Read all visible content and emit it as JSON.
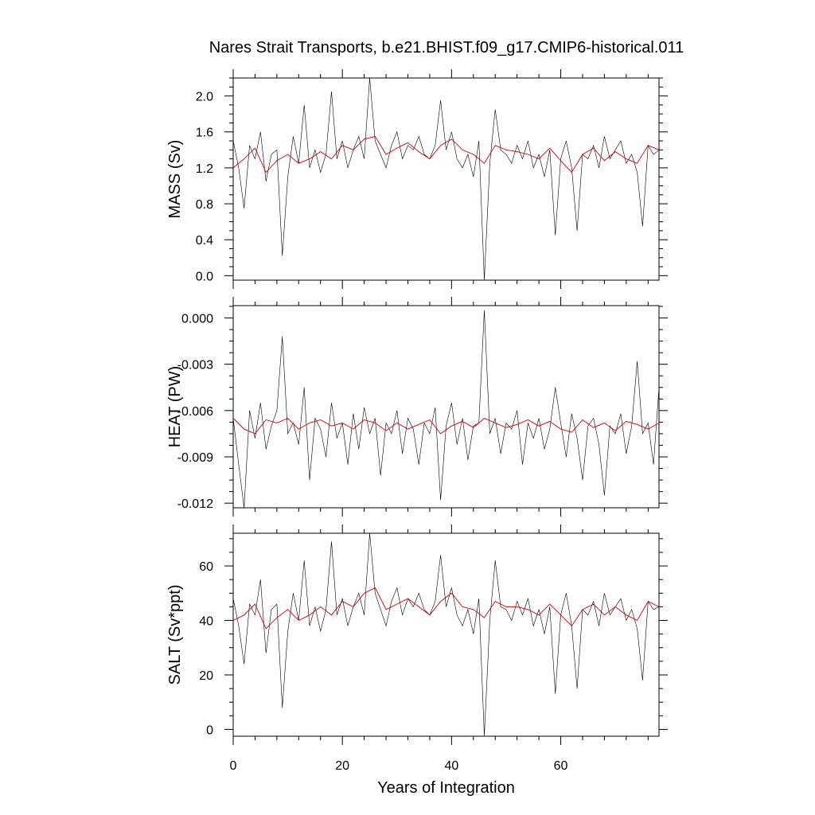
{
  "title": "Nares Strait Transports, b.e21.BHIST.f09_g17.CMIP6-historical.011",
  "colors": {
    "raw": "#000000",
    "smooth": "#d40000"
  },
  "chart_data": [
    {
      "type": "line",
      "ylabel": "MASS (Sv)",
      "xlabel": "",
      "xlim": [
        0,
        78
      ],
      "ylim": [
        -0.05,
        2.2
      ],
      "yticks": [
        0.0,
        0.4,
        0.8,
        1.2,
        1.6,
        2.0
      ],
      "ytick_labels": [
        "0.0",
        "0.4",
        "0.8",
        "1.2",
        "1.6",
        "2.0"
      ],
      "xticks": [
        0,
        20,
        40,
        60
      ],
      "xtick_labels": [
        "",
        "",
        "",
        ""
      ],
      "series": [
        {
          "style": "raw",
          "x": [
            0,
            1,
            2,
            3,
            4,
            5,
            6,
            7,
            8,
            9,
            10,
            11,
            12,
            13,
            14,
            15,
            16,
            17,
            18,
            19,
            20,
            21,
            22,
            23,
            24,
            25,
            26,
            27,
            28,
            29,
            30,
            31,
            32,
            33,
            34,
            35,
            36,
            37,
            38,
            39,
            40,
            41,
            42,
            43,
            44,
            45,
            46,
            47,
            48,
            49,
            50,
            51,
            52,
            53,
            54,
            55,
            56,
            57,
            58,
            59,
            60,
            61,
            62,
            63,
            64,
            65,
            66,
            67,
            68,
            69,
            70,
            71,
            72,
            73,
            74,
            75,
            76,
            77,
            78
          ],
          "values": [
            1.5,
            1.2,
            0.75,
            1.45,
            1.3,
            1.6,
            1.05,
            1.35,
            1.4,
            0.22,
            1.1,
            1.55,
            1.25,
            1.9,
            1.2,
            1.4,
            1.15,
            1.35,
            2.05,
            1.3,
            1.5,
            1.2,
            1.4,
            1.55,
            1.3,
            2.2,
            1.5,
            1.35,
            1.2,
            1.45,
            1.6,
            1.3,
            1.45,
            1.4,
            1.55,
            1.35,
            1.3,
            1.45,
            1.95,
            1.4,
            1.6,
            1.3,
            1.2,
            1.35,
            1.1,
            1.5,
            -0.05,
            1.25,
            1.85,
            1.4,
            1.35,
            1.25,
            1.45,
            1.3,
            1.5,
            1.2,
            1.35,
            1.1,
            1.4,
            0.45,
            1.3,
            1.5,
            1.2,
            0.5,
            1.35,
            1.3,
            1.45,
            1.2,
            1.55,
            1.3,
            1.4,
            1.5,
            1.25,
            1.35,
            1.15,
            0.55,
            1.45,
            1.35,
            1.4
          ]
        },
        {
          "style": "smooth",
          "x": [
            0,
            2,
            4,
            6,
            8,
            10,
            12,
            14,
            16,
            18,
            20,
            22,
            24,
            26,
            28,
            30,
            32,
            34,
            36,
            38,
            40,
            42,
            44,
            46,
            48,
            50,
            52,
            54,
            56,
            58,
            60,
            62,
            64,
            66,
            68,
            70,
            72,
            74,
            76,
            78
          ],
          "values": [
            1.2,
            1.3,
            1.42,
            1.15,
            1.28,
            1.35,
            1.25,
            1.3,
            1.38,
            1.3,
            1.45,
            1.4,
            1.52,
            1.55,
            1.35,
            1.42,
            1.48,
            1.38,
            1.3,
            1.45,
            1.52,
            1.4,
            1.35,
            1.25,
            1.45,
            1.4,
            1.38,
            1.35,
            1.3,
            1.42,
            1.28,
            1.15,
            1.35,
            1.42,
            1.28,
            1.38,
            1.3,
            1.25,
            1.45,
            1.4
          ]
        }
      ]
    },
    {
      "type": "line",
      "ylabel": "HEAT (PW)",
      "xlabel": "",
      "xlim": [
        0,
        78
      ],
      "ylim": [
        -0.0123,
        0.0008
      ],
      "yticks": [
        0.0,
        -0.003,
        -0.006,
        -0.009,
        -0.012
      ],
      "ytick_labels": [
        "0.000",
        "-0.003",
        "-0.006",
        "-0.009",
        "-0.012"
      ],
      "xticks": [
        0,
        20,
        40,
        60
      ],
      "xtick_labels": [
        "",
        "",
        "",
        ""
      ],
      "series": [
        {
          "style": "raw",
          "x": [
            0,
            1,
            2,
            3,
            4,
            5,
            6,
            7,
            8,
            9,
            10,
            11,
            12,
            13,
            14,
            15,
            16,
            17,
            18,
            19,
            20,
            21,
            22,
            23,
            24,
            25,
            26,
            27,
            28,
            29,
            30,
            31,
            32,
            33,
            34,
            35,
            36,
            37,
            38,
            39,
            40,
            41,
            42,
            43,
            44,
            45,
            46,
            47,
            48,
            49,
            50,
            51,
            52,
            53,
            54,
            55,
            56,
            57,
            58,
            59,
            60,
            61,
            62,
            63,
            64,
            65,
            66,
            67,
            68,
            69,
            70,
            71,
            72,
            73,
            74,
            75,
            76,
            77,
            78
          ],
          "values": [
            -0.0065,
            -0.0095,
            -0.0123,
            -0.006,
            -0.0078,
            -0.0055,
            -0.0085,
            -0.007,
            -0.006,
            -0.0012,
            -0.0075,
            -0.0068,
            -0.0082,
            -0.0045,
            -0.0105,
            -0.0065,
            -0.0072,
            -0.009,
            -0.0055,
            -0.0078,
            -0.0068,
            -0.0095,
            -0.0062,
            -0.0085,
            -0.0058,
            -0.0075,
            -0.0065,
            -0.0102,
            -0.0068,
            -0.0075,
            -0.006,
            -0.0088,
            -0.0065,
            -0.0072,
            -0.0095,
            -0.0068,
            -0.0075,
            -0.0058,
            -0.0118,
            -0.007,
            -0.0055,
            -0.0082,
            -0.0065,
            -0.0092,
            -0.007,
            -0.0068,
            0.0005,
            -0.0075,
            -0.0065,
            -0.0088,
            -0.0068,
            -0.0072,
            -0.006,
            -0.0095,
            -0.0068,
            -0.0078,
            -0.0065,
            -0.0085,
            -0.0072,
            -0.0045,
            -0.0068,
            -0.009,
            -0.0062,
            -0.0078,
            -0.0105,
            -0.007,
            -0.0065,
            -0.0082,
            -0.0115,
            -0.007,
            -0.0075,
            -0.0062,
            -0.0088,
            -0.007,
            -0.0028,
            -0.0075,
            -0.0068,
            -0.0095,
            -0.0045
          ]
        },
        {
          "style": "smooth",
          "x": [
            0,
            2,
            4,
            6,
            8,
            10,
            12,
            14,
            16,
            18,
            20,
            22,
            24,
            26,
            28,
            30,
            32,
            34,
            36,
            38,
            40,
            42,
            44,
            46,
            48,
            50,
            52,
            54,
            56,
            58,
            60,
            62,
            64,
            66,
            68,
            70,
            72,
            74,
            76,
            78
          ],
          "values": [
            -0.0065,
            -0.0072,
            -0.0075,
            -0.0066,
            -0.0068,
            -0.0065,
            -0.0072,
            -0.0068,
            -0.0066,
            -0.007,
            -0.0068,
            -0.0072,
            -0.0066,
            -0.0068,
            -0.0073,
            -0.0068,
            -0.0072,
            -0.0069,
            -0.0066,
            -0.0075,
            -0.007,
            -0.0067,
            -0.0071,
            -0.0065,
            -0.0068,
            -0.0071,
            -0.0069,
            -0.0066,
            -0.007,
            -0.0067,
            -0.0072,
            -0.0074,
            -0.0066,
            -0.0071,
            -0.0068,
            -0.0073,
            -0.0067,
            -0.0069,
            -0.0072,
            -0.0068
          ]
        }
      ]
    },
    {
      "type": "line",
      "ylabel": "SALT (Sv*ppt)",
      "xlabel": "Years of Integration",
      "xlim": [
        0,
        78
      ],
      "ylim": [
        -2.5,
        72
      ],
      "yticks": [
        0,
        20,
        40,
        60
      ],
      "ytick_labels": [
        "0",
        "20",
        "40",
        "60"
      ],
      "xticks": [
        0,
        20,
        40,
        60
      ],
      "xtick_labels": [
        "0",
        "20",
        "40",
        "60"
      ],
      "series": [
        {
          "style": "raw",
          "x": [
            0,
            1,
            2,
            3,
            4,
            5,
            6,
            7,
            8,
            9,
            10,
            11,
            12,
            13,
            14,
            15,
            16,
            17,
            18,
            19,
            20,
            21,
            22,
            23,
            24,
            25,
            26,
            27,
            28,
            29,
            30,
            31,
            32,
            33,
            34,
            35,
            36,
            37,
            38,
            39,
            40,
            41,
            42,
            43,
            44,
            45,
            46,
            47,
            48,
            49,
            50,
            51,
            52,
            53,
            54,
            55,
            56,
            57,
            58,
            59,
            60,
            61,
            62,
            63,
            64,
            65,
            66,
            67,
            68,
            69,
            70,
            71,
            72,
            73,
            74,
            75,
            76,
            77,
            78
          ],
          "values": [
            48,
            38,
            24,
            46,
            42,
            55,
            28,
            44,
            46,
            8,
            36,
            50,
            40,
            62,
            38,
            45,
            36,
            44,
            69,
            42,
            48,
            38,
            45,
            50,
            42,
            72,
            50,
            44,
            38,
            47,
            52,
            42,
            48,
            45,
            50,
            44,
            42,
            47,
            64,
            45,
            52,
            42,
            38,
            44,
            35,
            48,
            -2.5,
            40,
            62,
            45,
            44,
            40,
            47,
            42,
            48,
            38,
            44,
            35,
            45,
            13,
            42,
            50,
            38,
            15,
            44,
            42,
            47,
            38,
            50,
            42,
            45,
            48,
            40,
            44,
            37,
            18,
            47,
            44,
            45
          ]
        },
        {
          "style": "smooth",
          "x": [
            0,
            2,
            4,
            6,
            8,
            10,
            12,
            14,
            16,
            18,
            20,
            22,
            24,
            26,
            28,
            30,
            32,
            34,
            36,
            38,
            40,
            42,
            44,
            46,
            48,
            50,
            52,
            54,
            56,
            58,
            60,
            62,
            64,
            66,
            68,
            70,
            72,
            74,
            76,
            78
          ],
          "values": [
            40,
            42,
            46,
            37,
            41,
            44,
            40,
            42,
            45,
            42,
            47,
            45,
            50,
            52,
            44,
            46,
            48,
            45,
            42,
            47,
            50,
            45,
            44,
            41,
            47,
            45,
            45,
            44,
            42,
            46,
            42,
            38,
            44,
            46,
            42,
            45,
            42,
            40,
            47,
            45
          ]
        }
      ]
    }
  ]
}
